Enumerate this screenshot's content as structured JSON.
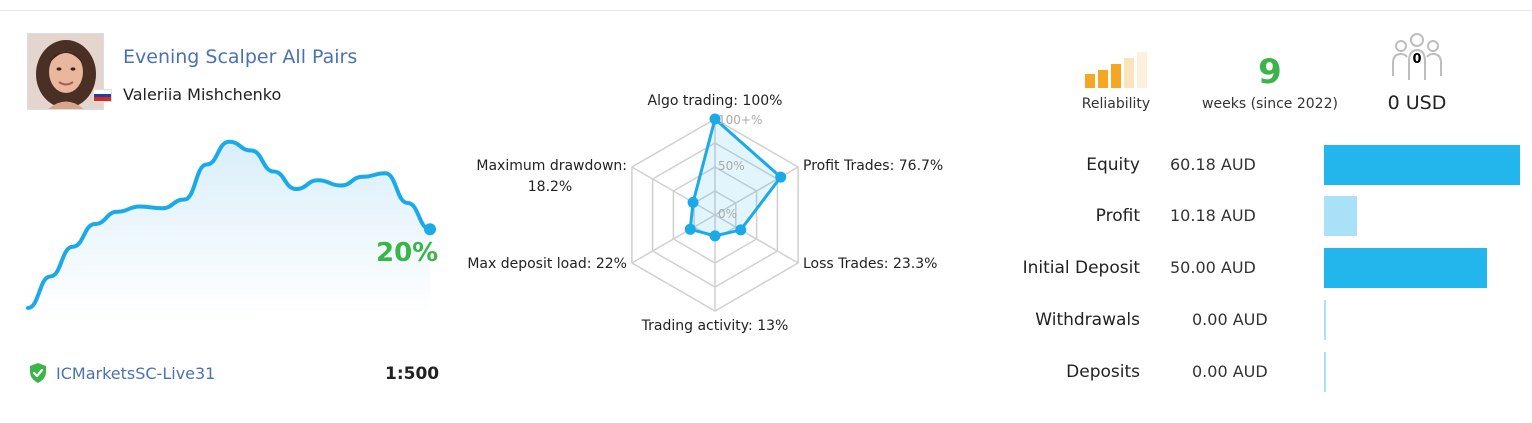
{
  "signal": {
    "title": "Evening Scalper All Pairs",
    "author": "Valeriia Mishchenko",
    "growth": "20%",
    "growth_series": [
      0,
      18,
      35,
      48,
      55,
      58,
      57,
      62,
      82,
      95,
      90,
      78,
      68,
      73,
      70,
      75,
      77,
      60,
      45
    ],
    "broker": "ICMarketsSC-Live31",
    "leverage": "1:500"
  },
  "colors": {
    "accent_blue": "#1aaae8",
    "growth_green": "#3bb44a",
    "link_blue": "#4a72b2",
    "reliability_orange": "#f5a623"
  },
  "icons": {
    "broker": "shield-check-icon",
    "subscribers": "people-icon",
    "reliability": "reliability-bars-icon",
    "flag": "russia-flag-icon"
  },
  "radar": {
    "scale_labels": [
      "100+%",
      "50%",
      "0%"
    ],
    "axes": [
      {
        "label": "Algo trading: 100%",
        "value": 100
      },
      {
        "label": "Profit Trades: 76.7%",
        "value": 76.7
      },
      {
        "label": "Loss Trades: 23.3%",
        "value": 23.3
      },
      {
        "label": "Trading activity: 13%",
        "value": 13
      },
      {
        "label": "Max deposit load: 22%",
        "value": 22
      },
      {
        "label_line1": "Maximum drawdown:",
        "label_line2": "18.2%",
        "value": 18.2
      }
    ]
  },
  "reliability": {
    "label": "Reliability",
    "filled_bars": 3,
    "total_bars": 5
  },
  "weeks": {
    "value": "9",
    "label": "weeks (since 2022)"
  },
  "subscribers": {
    "count": "0",
    "usd": "0 USD"
  },
  "stats": [
    {
      "label": "Equity",
      "value": "60.18 AUD",
      "amount": 60.18,
      "color": "#22b6ec"
    },
    {
      "label": "Profit",
      "value": "10.18 AUD",
      "amount": 10.18,
      "color": "#a9e1f9"
    },
    {
      "label": "Initial Deposit",
      "value": "50.00 AUD",
      "amount": 50.0,
      "color": "#22b6ec"
    },
    {
      "label": "Withdrawals",
      "value": "0.00 AUD",
      "amount": 0,
      "color": "#a9e1f9"
    },
    {
      "label": "Deposits",
      "value": "0.00 AUD",
      "amount": 0,
      "color": "#a9e1f9"
    }
  ]
}
